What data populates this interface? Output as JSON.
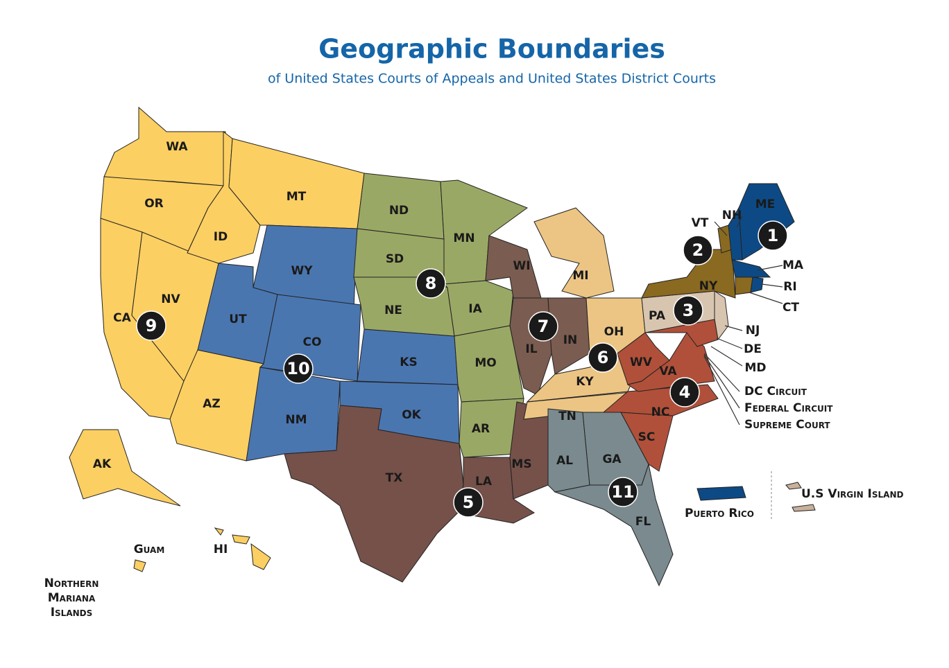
{
  "title": "Geographic Boundaries",
  "subtitle": "of United States Courts of Appeals and United States District Courts",
  "state_labels": [
    "WA",
    "OR",
    "CA",
    "NV",
    "ID",
    "MT",
    "WY",
    "UT",
    "CO",
    "AZ",
    "NM",
    "ND",
    "SD",
    "NE",
    "KS",
    "OK",
    "TX",
    "MN",
    "IA",
    "MO",
    "AR",
    "LA",
    "MS",
    "WI",
    "IL",
    "IN",
    "MI",
    "OH",
    "KY",
    "TN",
    "AL",
    "GA",
    "FL",
    "SC",
    "NC",
    "VA",
    "WV",
    "PA",
    "NY",
    "VT",
    "NH",
    "ME",
    "MA",
    "RI",
    "CT",
    "NJ",
    "DE",
    "MD",
    "AK",
    "HI"
  ],
  "circuit_labels": [
    1,
    2,
    3,
    4,
    5,
    6,
    7,
    8,
    9,
    10,
    11
  ],
  "callouts": [
    "DC Circuit",
    "Federal Circuit",
    "Supreme Court"
  ],
  "territories": [
    "Puerto Rico",
    "U.S Virgin Island",
    "Guam",
    "Northern Mariana Islands"
  ]
}
